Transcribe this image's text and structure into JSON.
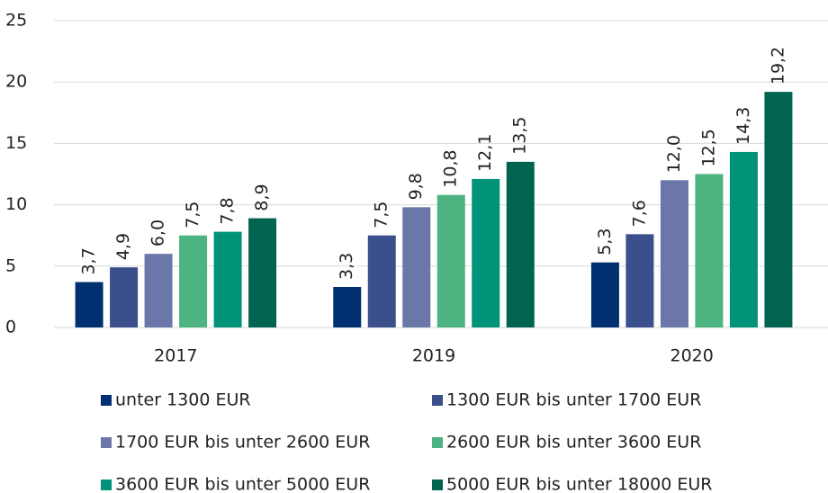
{
  "chart_data": {
    "type": "bar",
    "categories": [
      "2017",
      "2019",
      "2020"
    ],
    "series": [
      {
        "name": "unter 1300 EUR",
        "color": "#003070",
        "values": [
          3.7,
          3.3,
          5.3
        ],
        "value_labels": [
          "3,7",
          "3,3",
          "5,3"
        ]
      },
      {
        "name": "1300 EUR bis unter 1700 EUR",
        "color": "#3a4f8c",
        "values": [
          4.9,
          7.5,
          7.6
        ],
        "value_labels": [
          "4,9",
          "7,5",
          "7,6"
        ]
      },
      {
        "name": "1700 EUR bis unter 2600 EUR",
        "color": "#6a77a8",
        "values": [
          6.0,
          9.8,
          12.0
        ],
        "value_labels": [
          "6,0",
          "9,8",
          "12,0"
        ]
      },
      {
        "name": "2600 EUR bis unter 3600 EUR",
        "color": "#4db380",
        "values": [
          7.5,
          10.8,
          12.5
        ],
        "value_labels": [
          "7,5",
          "10,8",
          "12,5"
        ]
      },
      {
        "name": "3600 EUR bis unter 5000 EUR",
        "color": "#00937a",
        "values": [
          7.8,
          12.1,
          14.3
        ],
        "value_labels": [
          "7,8",
          "12,1",
          "14,3"
        ]
      },
      {
        "name": "5000 EUR bis unter 18000 EUR",
        "color": "#006450",
        "values": [
          8.9,
          13.5,
          19.2
        ],
        "value_labels": [
          "8,9",
          "13,5",
          "19,2"
        ]
      }
    ],
    "ylim": [
      0,
      25
    ],
    "yticks": [
      0,
      5,
      10,
      15,
      20,
      25
    ],
    "grid": true
  }
}
